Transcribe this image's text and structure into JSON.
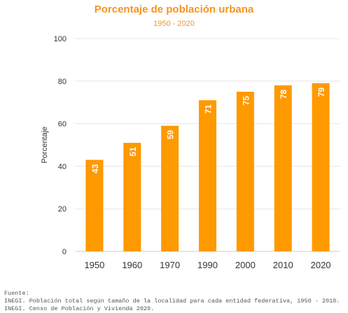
{
  "chart_data": {
    "type": "bar",
    "title": "Porcentaje de población urbana",
    "subtitle": "1950 - 2020",
    "ylabel": "Porcentaje",
    "xlabel": "",
    "categories": [
      "1950",
      "1960",
      "1970",
      "1990",
      "2000",
      "2010",
      "2020"
    ],
    "values": [
      43,
      51,
      59,
      71,
      75,
      78,
      79
    ],
    "ylim": [
      0,
      100
    ],
    "yticks": [
      0,
      20,
      40,
      60,
      80,
      100
    ],
    "grid": true,
    "bar_color": "#ff9900",
    "label_color": "#ffffff",
    "title_color": "#f7941d"
  },
  "source": {
    "label": "Fuente:",
    "lines": [
      "INEGI. Población total según tamaño de la localidad para cada entidad federativa, 1950 - 2010.",
      "INEGI. Censo de Población y Vivienda 2020."
    ]
  }
}
